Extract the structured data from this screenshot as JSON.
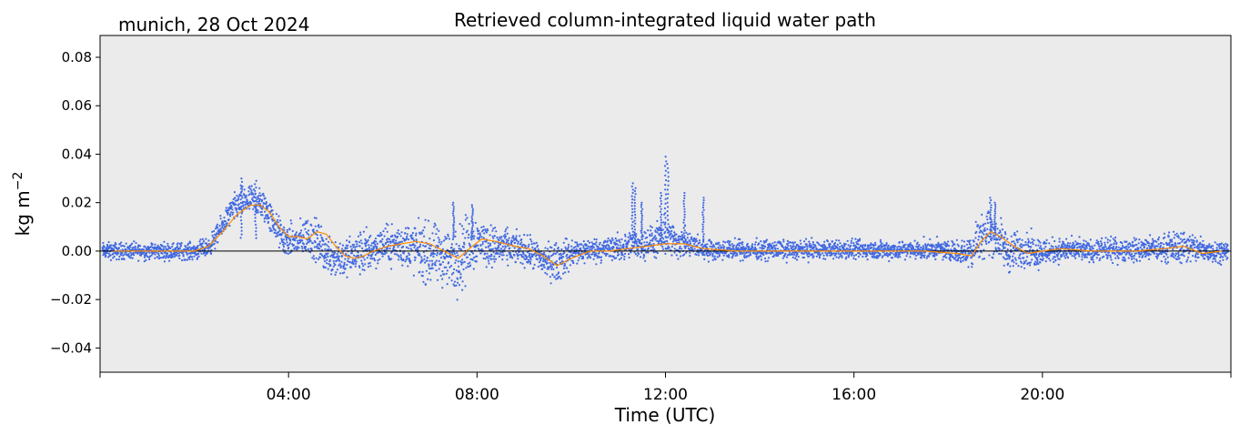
{
  "chart_data": {
    "type": "scatter",
    "title": "Retrieved column-integrated liquid water path",
    "subtitle": "munich, 28 Oct 2024",
    "xlabel": "Time (UTC)",
    "ylabel": "kg m",
    "ylabel_sup": "−2",
    "xlim_hours": [
      0,
      24
    ],
    "ylim": [
      -0.05,
      0.089
    ],
    "xticks": [
      {
        "hour": 4,
        "label": "04:00"
      },
      {
        "hour": 8,
        "label": "08:00"
      },
      {
        "hour": 12,
        "label": "12:00"
      },
      {
        "hour": 16,
        "label": "16:00"
      },
      {
        "hour": 20,
        "label": "20:00"
      }
    ],
    "yticks": [
      {
        "value": -0.04,
        "label": "−0.04"
      },
      {
        "value": -0.02,
        "label": "−0.02"
      },
      {
        "value": 0.0,
        "label": "0.00"
      },
      {
        "value": 0.02,
        "label": "0.02"
      },
      {
        "value": 0.04,
        "label": "0.04"
      },
      {
        "value": 0.06,
        "label": "0.06"
      },
      {
        "value": 0.08,
        "label": "0.08"
      }
    ],
    "grid": false,
    "zero_line": 0.0,
    "background_color": "#ebebeb",
    "scatter_color": "#4169e1",
    "smooth_color": "#ff8c00",
    "series": [
      {
        "kind": "envelope",
        "x": [
          0.0,
          0.5,
          1.0,
          1.5,
          2.0,
          2.3,
          2.5,
          2.7,
          2.9,
          3.1,
          3.3,
          3.5,
          3.7,
          3.9,
          4.2,
          4.4,
          4.6,
          4.8,
          5.0,
          5.2,
          5.4,
          5.6,
          5.8,
          6.0,
          6.3,
          6.6,
          6.9,
          7.2,
          7.5,
          7.7,
          7.9,
          8.1,
          8.3,
          8.6,
          8.9,
          9.2,
          9.5,
          9.7,
          9.9,
          10.2,
          10.5,
          10.8,
          11.1,
          11.3,
          11.5,
          11.8,
          12.0,
          12.2,
          12.5,
          12.8,
          13.0,
          13.5,
          14.0,
          15.0,
          16.0,
          17.0,
          18.0,
          18.3,
          18.5,
          18.7,
          18.9,
          19.1,
          19.3,
          19.6,
          19.9,
          20.2,
          20.5,
          21.0,
          21.5,
          22.0,
          22.5,
          23.0,
          23.5,
          24.0
        ],
        "low": [
          -0.004,
          -0.004,
          -0.004,
          -0.004,
          -0.004,
          -0.003,
          0.002,
          0.008,
          0.012,
          0.014,
          0.013,
          0.01,
          0.004,
          -0.003,
          -0.004,
          -0.003,
          -0.006,
          -0.01,
          -0.013,
          -0.012,
          -0.011,
          -0.012,
          -0.008,
          -0.006,
          -0.007,
          -0.01,
          -0.015,
          -0.016,
          -0.019,
          -0.018,
          -0.01,
          -0.006,
          -0.008,
          -0.007,
          -0.006,
          -0.009,
          -0.013,
          -0.014,
          -0.01,
          -0.006,
          -0.005,
          -0.005,
          -0.005,
          -0.004,
          -0.004,
          -0.004,
          -0.004,
          -0.004,
          -0.004,
          -0.004,
          -0.004,
          -0.004,
          -0.004,
          -0.004,
          -0.004,
          -0.004,
          -0.004,
          -0.006,
          -0.009,
          -0.004,
          -0.003,
          -0.006,
          -0.011,
          -0.007,
          -0.008,
          -0.006,
          -0.005,
          -0.005,
          -0.005,
          -0.005,
          -0.005,
          -0.006,
          -0.006,
          -0.004
        ],
        "high": [
          0.004,
          0.004,
          0.004,
          0.004,
          0.004,
          0.006,
          0.012,
          0.02,
          0.026,
          0.028,
          0.028,
          0.026,
          0.018,
          0.012,
          0.012,
          0.016,
          0.014,
          0.008,
          0.009,
          0.006,
          0.008,
          0.011,
          0.01,
          0.011,
          0.012,
          0.014,
          0.013,
          0.012,
          0.012,
          0.016,
          0.018,
          0.014,
          0.012,
          0.01,
          0.008,
          0.006,
          0.004,
          0.005,
          0.006,
          0.006,
          0.006,
          0.007,
          0.008,
          0.009,
          0.01,
          0.012,
          0.015,
          0.012,
          0.009,
          0.006,
          0.005,
          0.005,
          0.005,
          0.005,
          0.005,
          0.005,
          0.005,
          0.005,
          0.01,
          0.018,
          0.02,
          0.014,
          0.008,
          0.01,
          0.007,
          0.006,
          0.006,
          0.005,
          0.006,
          0.006,
          0.007,
          0.01,
          0.006,
          0.004
        ]
      },
      {
        "kind": "spikes",
        "x": [
          3.0,
          3.3,
          7.5,
          7.9,
          11.3,
          11.35,
          11.5,
          11.9,
          12.0,
          12.05,
          12.4,
          12.8,
          18.9,
          19.0
        ],
        "y": [
          0.03,
          0.029,
          0.02,
          0.019,
          0.028,
          0.026,
          0.02,
          0.024,
          0.039,
          0.036,
          0.024,
          0.022,
          0.022,
          0.02
        ]
      },
      {
        "kind": "smooth",
        "x": [
          0.3,
          1.0,
          2.0,
          2.3,
          2.6,
          2.9,
          3.2,
          3.4,
          3.6,
          3.8,
          4.0,
          4.2,
          4.4,
          4.6,
          4.8,
          5.0,
          5.2,
          5.4,
          5.6,
          5.8,
          6.1,
          6.4,
          6.7,
          7.0,
          7.3,
          7.6,
          7.9,
          8.1,
          8.4,
          8.8,
          9.1,
          9.4,
          9.7,
          10.0,
          10.4,
          10.8,
          11.2,
          11.6,
          12.0,
          12.4,
          12.8,
          13.5,
          14.5,
          16.0,
          17.5,
          18.2,
          18.5,
          18.7,
          18.9,
          19.1,
          19.4,
          19.7,
          20.0,
          20.4,
          21.0,
          22.0,
          22.6,
          23.0,
          23.4,
          23.8
        ],
        "y": [
          0.0,
          0.0,
          0.0,
          0.002,
          0.008,
          0.015,
          0.019,
          0.019,
          0.016,
          0.01,
          0.006,
          0.006,
          0.005,
          0.008,
          0.007,
          0.002,
          -0.002,
          -0.003,
          -0.002,
          0.0,
          0.002,
          0.003,
          0.004,
          0.003,
          0.0,
          -0.003,
          0.002,
          0.005,
          0.004,
          0.002,
          0.001,
          -0.002,
          -0.006,
          -0.003,
          0.0,
          0.0,
          0.001,
          0.002,
          0.003,
          0.003,
          0.001,
          0.0,
          0.0,
          0.0,
          0.0,
          -0.001,
          -0.002,
          0.004,
          0.008,
          0.006,
          0.002,
          -0.001,
          0.0,
          0.001,
          0.0,
          0.0,
          0.001,
          0.002,
          -0.001,
          0.0
        ]
      }
    ]
  }
}
